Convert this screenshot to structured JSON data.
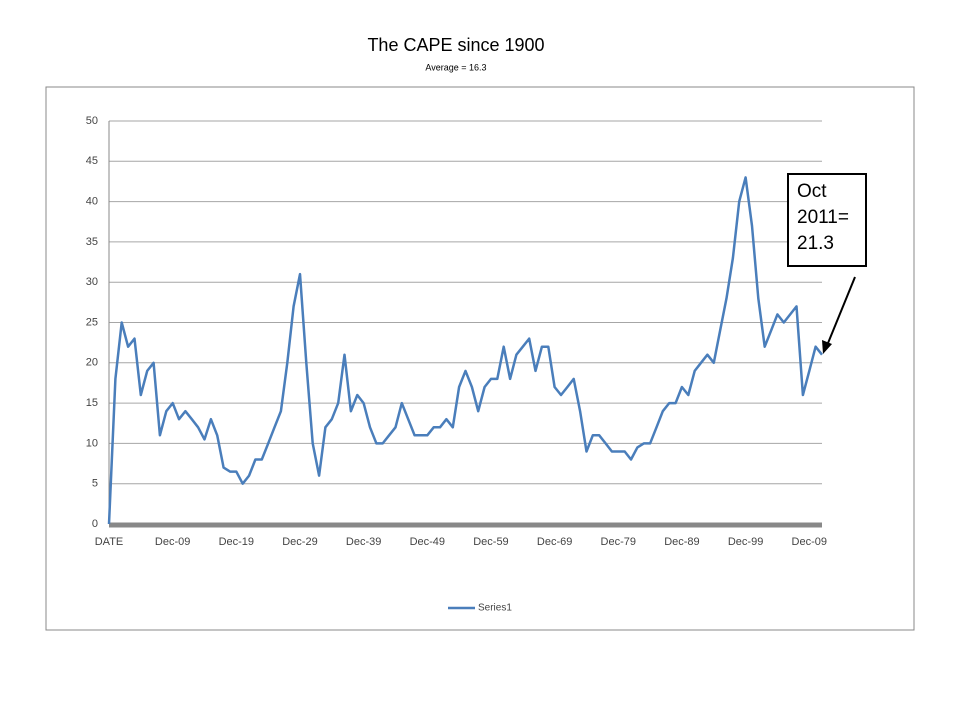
{
  "chart_data": {
    "type": "line",
    "title": "The CAPE since 1900",
    "subtitle": "Average = 16.3",
    "annotation": "Oct 2011= 21.3",
    "categories": [
      "DATE",
      null,
      null,
      null,
      null,
      null,
      null,
      null,
      null,
      null,
      "Dec-09",
      null,
      null,
      null,
      null,
      null,
      null,
      null,
      null,
      null,
      "Dec-19",
      null,
      null,
      null,
      null,
      null,
      null,
      null,
      null,
      null,
      "Dec-29",
      null,
      null,
      null,
      null,
      null,
      null,
      null,
      null,
      null,
      "Dec-39",
      null,
      null,
      null,
      null,
      null,
      null,
      null,
      null,
      null,
      "Dec-49",
      null,
      null,
      null,
      null,
      null,
      null,
      null,
      null,
      null,
      "Dec-59",
      null,
      null,
      null,
      null,
      null,
      null,
      null,
      null,
      null,
      "Dec-69",
      null,
      null,
      null,
      null,
      null,
      null,
      null,
      null,
      null,
      "Dec-79",
      null,
      null,
      null,
      null,
      null,
      null,
      null,
      null,
      null,
      "Dec-89",
      null,
      null,
      null,
      null,
      null,
      null,
      null,
      null,
      null,
      "Dec-99",
      null,
      null,
      null,
      null,
      null,
      null,
      null,
      null,
      null,
      "Dec-09",
      null,
      null
    ],
    "series": [
      {
        "name": "Series1",
        "color": "#4a7ebb",
        "values": [
          0,
          18,
          25,
          22,
          23,
          16,
          19,
          20,
          11,
          14,
          15,
          13,
          14,
          13,
          12,
          10.5,
          13,
          11,
          7,
          6.5,
          6.5,
          5,
          6,
          8,
          8,
          10,
          12,
          14,
          20,
          27,
          31,
          20,
          10,
          6,
          12,
          13,
          15,
          21,
          14,
          16,
          15,
          12,
          10,
          10,
          11,
          12,
          15,
          13,
          11,
          11,
          11,
          12,
          12,
          13,
          12,
          17,
          19,
          17,
          14,
          17,
          18,
          18,
          22,
          18,
          21,
          22,
          23,
          19,
          22,
          22,
          17,
          16,
          17,
          18,
          14,
          9,
          11,
          11,
          10,
          9,
          9,
          9,
          8,
          9.5,
          10,
          10,
          12,
          14,
          15,
          15,
          17,
          16,
          19,
          20,
          21,
          20,
          24,
          28,
          33,
          40,
          43,
          37,
          28,
          22,
          24,
          26,
          25,
          26,
          27,
          16,
          19,
          22,
          21
        ]
      }
    ],
    "ylim": [
      0,
      50
    ],
    "yticks": [
      0,
      5,
      10,
      15,
      20,
      25,
      30,
      35,
      40,
      45,
      50
    ],
    "grid": true,
    "legend": "bottom"
  }
}
